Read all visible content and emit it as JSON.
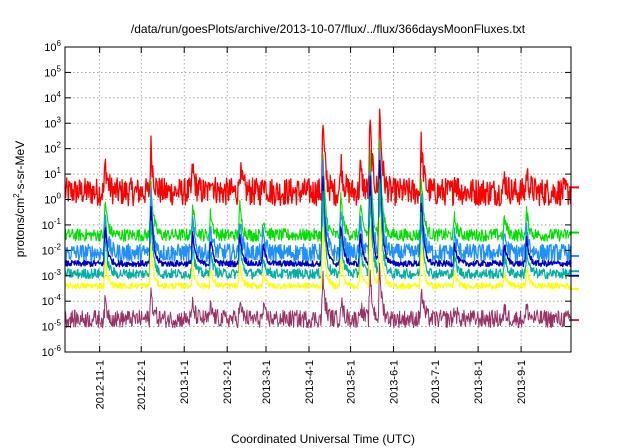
{
  "chart_data": {
    "type": "line",
    "title": "/data/run/goesPlots/archive/2013-10-07/flux/../flux/366daysMoonFluxes.txt",
    "xlabel": "Coordinated Universal Time (UTC)",
    "ylabel_parts": [
      "protons/cm",
      "2",
      "-s-sr-MeV"
    ],
    "y_scale": "log",
    "ylim": [
      1e-06,
      1000000.0
    ],
    "xlim": [
      "2012-10-07",
      "2013-10-07"
    ],
    "grid": true,
    "legend": "none",
    "x_ticks": [
      "2012-11-1",
      "2012-12-1",
      "2013-1-1",
      "2013-2-1",
      "2013-3-1",
      "2013-4-1",
      "2013-5-1",
      "2013-6-1",
      "2013-7-1",
      "2013-8-1",
      "2013-9-1"
    ],
    "y_ticks": [
      {
        "base": "10",
        "exp": "-6"
      },
      {
        "base": "10",
        "exp": "-5"
      },
      {
        "base": "10",
        "exp": "-4"
      },
      {
        "base": "10",
        "exp": "-3"
      },
      {
        "base": "10",
        "exp": "-2"
      },
      {
        "base": "10",
        "exp": "-1"
      },
      {
        "base": "10",
        "exp": "0"
      },
      {
        "base": "10",
        "exp": "1"
      },
      {
        "base": "10",
        "exp": "2"
      },
      {
        "base": "10",
        "exp": "3"
      },
      {
        "base": "10",
        "exp": "4"
      },
      {
        "base": "10",
        "exp": "5"
      },
      {
        "base": "10",
        "exp": "6"
      }
    ],
    "events": [
      {
        "date": "2012-11-05",
        "amp": 1.2
      },
      {
        "date": "2012-12-08",
        "amp": 1.8
      },
      {
        "date": "2013-01-07",
        "amp": 1.0
      },
      {
        "date": "2013-01-20",
        "amp": 0.8
      },
      {
        "date": "2013-02-10",
        "amp": 1.0
      },
      {
        "date": "2013-02-27",
        "amp": 0.6
      },
      {
        "date": "2013-04-11",
        "amp": 2.8
      },
      {
        "date": "2013-04-24",
        "amp": 1.3
      },
      {
        "date": "2013-05-08",
        "amp": 1.0
      },
      {
        "date": "2013-05-15",
        "amp": 2.8
      },
      {
        "date": "2013-05-22",
        "amp": 3.3
      },
      {
        "date": "2013-06-21",
        "amp": 2.0
      },
      {
        "date": "2013-07-15",
        "amp": 0.6
      },
      {
        "date": "2013-08-20",
        "amp": 0.6
      },
      {
        "date": "2013-09-05",
        "amp": 0.8
      }
    ],
    "series": [
      {
        "color": "#ff0000",
        "base": 2.0,
        "noise": 0.55,
        "resp": 1.0,
        "width": 1.3,
        "last": 3.0
      },
      {
        "color": "#00e000",
        "base": 0.04,
        "noise": 0.25,
        "resp": 1.2,
        "width": 1.1,
        "last": 0.05
      },
      {
        "color": "#1e90ff",
        "base": 0.008,
        "noise": 0.35,
        "resp": 1.3,
        "width": 1.3,
        "last": 0.006
      },
      {
        "color": "#0000cc",
        "base": 0.003,
        "noise": 0.12,
        "resp": 1.3,
        "width": 1.4,
        "last": 0.001
      },
      {
        "color": "#00b0a0",
        "base": 0.0012,
        "noise": 0.2,
        "resp": 1.2,
        "width": 1.2,
        "last": 0.0015
      },
      {
        "color": "#ffff00",
        "base": 0.0004,
        "noise": 0.12,
        "resp": 0.9,
        "width": 1.2,
        "last": 0.0003
      },
      {
        "color": "#993366",
        "base": 2e-05,
        "noise": 0.35,
        "resp": 0.6,
        "width": 1.0,
        "last": 1.8e-05
      }
    ]
  }
}
